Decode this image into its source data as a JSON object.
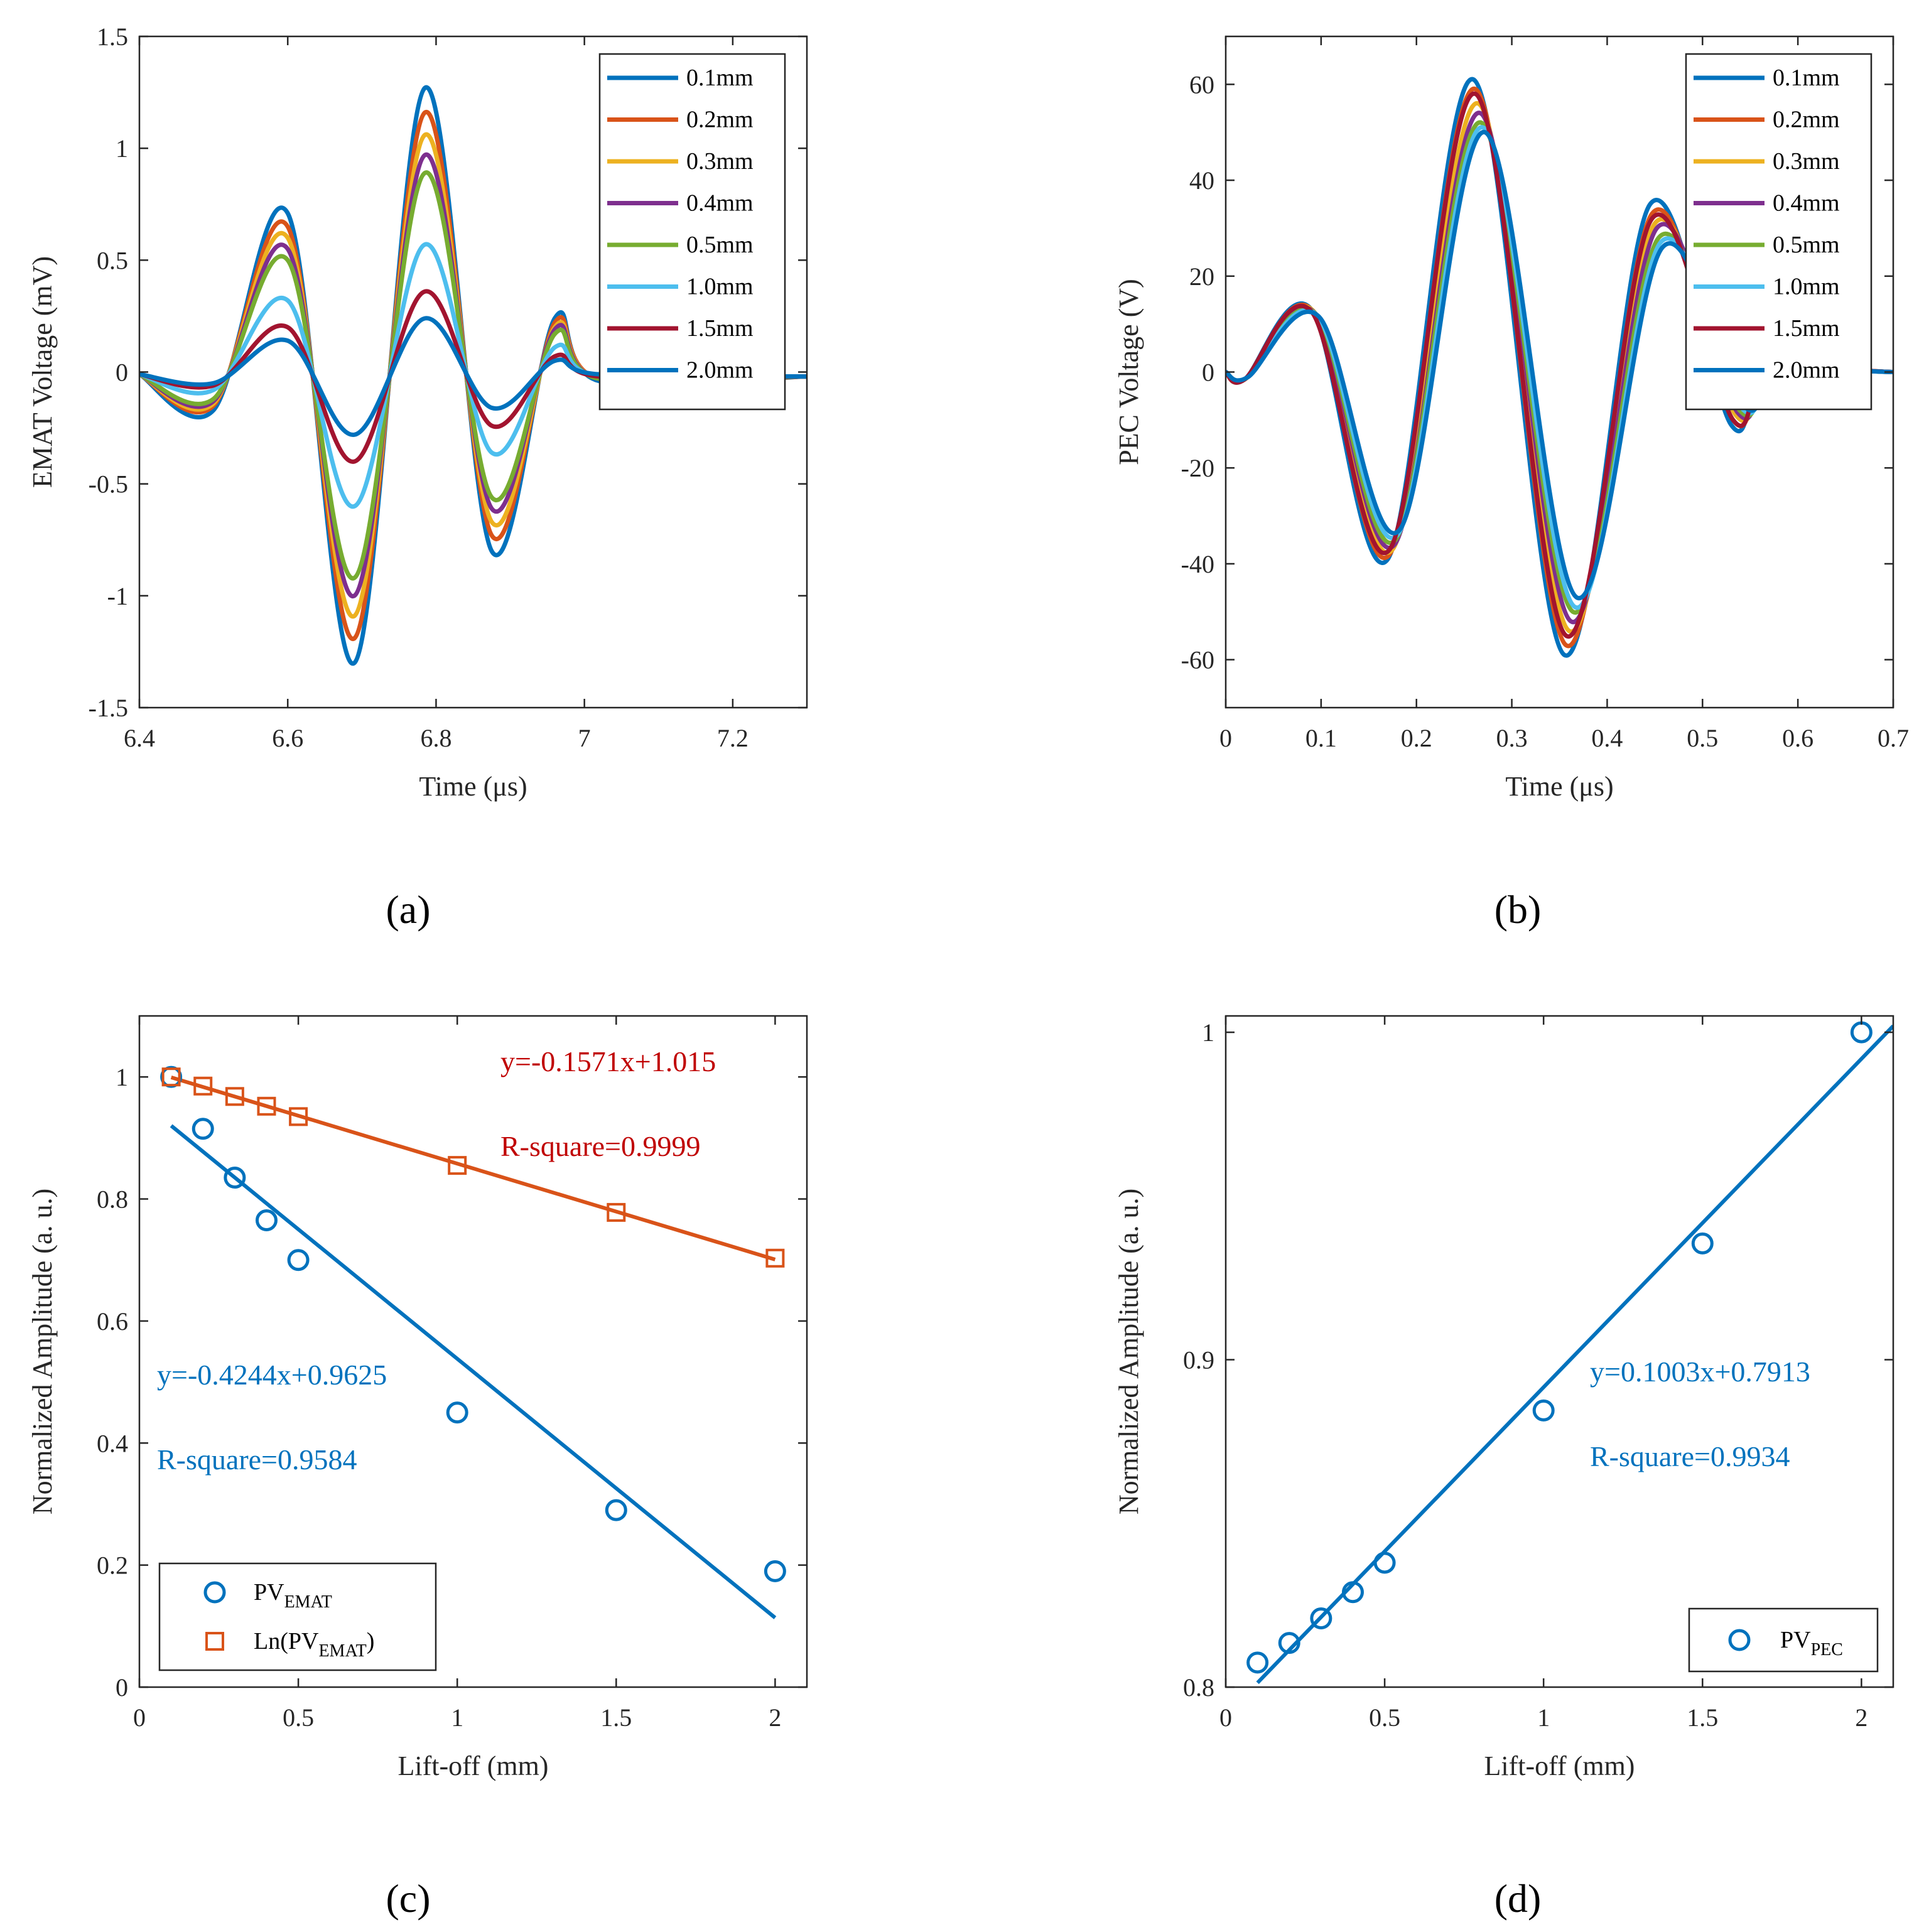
{
  "captions": [
    "(a)",
    "(b)",
    "(c)",
    "(d)"
  ],
  "chart_data": [
    {
      "type": "line",
      "panel": "(a)",
      "xlabel": "Time (μs)",
      "ylabel": "EMAT Voltage (mV)",
      "xlim": [
        6.4,
        7.3
      ],
      "ylim": [
        -1.5,
        1.5
      ],
      "xticks": [
        6.4,
        6.6,
        6.8,
        7,
        7.2
      ],
      "xtick_labels": [
        "6.4",
        "6.6",
        "6.8",
        "7",
        "7.2"
      ],
      "yticks": [
        -1.5,
        -1,
        -0.5,
        0,
        0.5,
        1,
        1.5
      ],
      "ytick_labels": [
        "-1.5",
        "-1",
        "-0.5",
        "0",
        "0.5",
        "1",
        "1.5"
      ],
      "legend_position": "top-right",
      "series": [
        {
          "name": "0.1mm",
          "color": "#0072BD",
          "values": [
            {
              "x": 6.4,
              "y": -0.01
            },
            {
              "x": 6.5,
              "y": -0.17
            },
            {
              "x": 6.6,
              "y": 0.71
            },
            {
              "x": 6.69,
              "y": -1.3
            },
            {
              "x": 6.785,
              "y": 1.27
            },
            {
              "x": 6.875,
              "y": -0.8
            },
            {
              "x": 6.96,
              "y": 0.24
            },
            {
              "x": 7.02,
              "y": -0.04
            },
            {
              "x": 7.3,
              "y": -0.02
            }
          ]
        },
        {
          "name": "0.2mm",
          "color": "#D95319",
          "values": [
            {
              "x": 6.4,
              "y": -0.01
            },
            {
              "x": 6.5,
              "y": -0.15
            },
            {
              "x": 6.6,
              "y": 0.65
            },
            {
              "x": 6.69,
              "y": -1.19
            },
            {
              "x": 6.785,
              "y": 1.16
            },
            {
              "x": 6.875,
              "y": -0.73
            },
            {
              "x": 6.96,
              "y": 0.22
            },
            {
              "x": 7.02,
              "y": -0.03
            },
            {
              "x": 7.3,
              "y": -0.02
            }
          ]
        },
        {
          "name": "0.3mm",
          "color": "#EDB120",
          "values": [
            {
              "x": 6.4,
              "y": -0.01
            },
            {
              "x": 6.5,
              "y": -0.14
            },
            {
              "x": 6.6,
              "y": 0.6
            },
            {
              "x": 6.69,
              "y": -1.09
            },
            {
              "x": 6.785,
              "y": 1.06
            },
            {
              "x": 6.875,
              "y": -0.67
            },
            {
              "x": 6.96,
              "y": 0.2
            },
            {
              "x": 7.02,
              "y": -0.03
            },
            {
              "x": 7.3,
              "y": -0.02
            }
          ]
        },
        {
          "name": "0.4mm",
          "color": "#7E2F8E",
          "values": [
            {
              "x": 6.4,
              "y": -0.01
            },
            {
              "x": 6.5,
              "y": -0.13
            },
            {
              "x": 6.6,
              "y": 0.55
            },
            {
              "x": 6.69,
              "y": -1.0
            },
            {
              "x": 6.785,
              "y": 0.97
            },
            {
              "x": 6.875,
              "y": -0.61
            },
            {
              "x": 6.96,
              "y": 0.19
            },
            {
              "x": 7.02,
              "y": -0.03
            },
            {
              "x": 7.3,
              "y": -0.02
            }
          ]
        },
        {
          "name": "0.5mm",
          "color": "#77AC30",
          "values": [
            {
              "x": 6.4,
              "y": -0.01
            },
            {
              "x": 6.5,
              "y": -0.12
            },
            {
              "x": 6.6,
              "y": 0.5
            },
            {
              "x": 6.69,
              "y": -0.92
            },
            {
              "x": 6.785,
              "y": 0.89
            },
            {
              "x": 6.875,
              "y": -0.56
            },
            {
              "x": 6.96,
              "y": 0.17
            },
            {
              "x": 7.02,
              "y": -0.03
            },
            {
              "x": 7.3,
              "y": -0.02
            }
          ]
        },
        {
          "name": "1.0mm",
          "color": "#4DBEEE",
          "values": [
            {
              "x": 6.4,
              "y": -0.01
            },
            {
              "x": 6.5,
              "y": -0.08
            },
            {
              "x": 6.6,
              "y": 0.32
            },
            {
              "x": 6.69,
              "y": -0.6
            },
            {
              "x": 6.785,
              "y": 0.57
            },
            {
              "x": 6.875,
              "y": -0.36
            },
            {
              "x": 6.96,
              "y": 0.11
            },
            {
              "x": 7.02,
              "y": -0.02
            },
            {
              "x": 7.3,
              "y": -0.02
            }
          ]
        },
        {
          "name": "1.5mm",
          "color": "#A2142F",
          "values": [
            {
              "x": 6.4,
              "y": -0.01
            },
            {
              "x": 6.5,
              "y": -0.06
            },
            {
              "x": 6.6,
              "y": 0.2
            },
            {
              "x": 6.69,
              "y": -0.4
            },
            {
              "x": 6.785,
              "y": 0.36
            },
            {
              "x": 6.875,
              "y": -0.24
            },
            {
              "x": 6.96,
              "y": 0.07
            },
            {
              "x": 7.02,
              "y": -0.02
            },
            {
              "x": 7.3,
              "y": -0.02
            }
          ]
        },
        {
          "name": "2.0mm",
          "color": "#0072BD",
          "values": [
            {
              "x": 6.4,
              "y": -0.01
            },
            {
              "x": 6.5,
              "y": -0.05
            },
            {
              "x": 6.6,
              "y": 0.14
            },
            {
              "x": 6.69,
              "y": -0.28
            },
            {
              "x": 6.785,
              "y": 0.24
            },
            {
              "x": 6.875,
              "y": -0.16
            },
            {
              "x": 6.96,
              "y": 0.05
            },
            {
              "x": 7.02,
              "y": -0.01
            },
            {
              "x": 7.3,
              "y": -0.02
            }
          ]
        }
      ]
    },
    {
      "type": "line",
      "panel": "(b)",
      "xlabel": "Time (μs)",
      "ylabel": "PEC Voltage (V)",
      "xlim": [
        0,
        0.7
      ],
      "ylim": [
        -70,
        70
      ],
      "xticks": [
        0,
        0.1,
        0.2,
        0.3,
        0.4,
        0.5,
        0.6,
        0.7
      ],
      "xtick_labels": [
        "0",
        "0.1",
        "0.2",
        "0.3",
        "0.4",
        "0.5",
        "0.6",
        "0.7"
      ],
      "yticks": [
        -60,
        -40,
        -20,
        0,
        20,
        40,
        60
      ],
      "ytick_labels": [
        "-60",
        "-40",
        "-20",
        "0",
        "20",
        "40",
        "60"
      ],
      "legend_position": "top-right",
      "series": [
        {
          "name": "0.1mm",
          "color": "#0072BD",
          "values": [
            {
              "x": 0,
              "y": 0
            },
            {
              "x": 0.02,
              "y": -1.5
            },
            {
              "x": 0.09,
              "y": 13
            },
            {
              "x": 0.17,
              "y": -39
            },
            {
              "x": 0.26,
              "y": 61
            },
            {
              "x": 0.355,
              "y": -59
            },
            {
              "x": 0.445,
              "y": 35
            },
            {
              "x": 0.53,
              "y": -11
            },
            {
              "x": 0.57,
              "y": 0
            },
            {
              "x": 0.7,
              "y": 0
            }
          ]
        },
        {
          "name": "0.2mm",
          "color": "#D95319",
          "values": [
            {
              "x": 0,
              "y": 0
            },
            {
              "x": 0.02,
              "y": -1.5
            },
            {
              "x": 0.091,
              "y": 12.8
            },
            {
              "x": 0.172,
              "y": -38
            },
            {
              "x": 0.262,
              "y": 59
            },
            {
              "x": 0.357,
              "y": -57
            },
            {
              "x": 0.447,
              "y": 33
            },
            {
              "x": 0.532,
              "y": -10
            },
            {
              "x": 0.572,
              "y": 0
            },
            {
              "x": 0.7,
              "y": 0
            }
          ]
        },
        {
          "name": "0.3mm",
          "color": "#EDB120",
          "values": [
            {
              "x": 0,
              "y": 0
            },
            {
              "x": 0.021,
              "y": -1.4
            },
            {
              "x": 0.093,
              "y": 12.5
            },
            {
              "x": 0.175,
              "y": -37
            },
            {
              "x": 0.265,
              "y": 56
            },
            {
              "x": 0.36,
              "y": -54
            },
            {
              "x": 0.45,
              "y": 31
            },
            {
              "x": 0.535,
              "y": -9
            },
            {
              "x": 0.575,
              "y": 0
            },
            {
              "x": 0.7,
              "y": 0
            }
          ]
        },
        {
          "name": "0.4mm",
          "color": "#7E2F8E",
          "values": [
            {
              "x": 0,
              "y": 0
            },
            {
              "x": 0.021,
              "y": -1.3
            },
            {
              "x": 0.094,
              "y": 12.2
            },
            {
              "x": 0.177,
              "y": -36
            },
            {
              "x": 0.267,
              "y": 54
            },
            {
              "x": 0.362,
              "y": -52
            },
            {
              "x": 0.452,
              "y": 30
            },
            {
              "x": 0.537,
              "y": -8.5
            },
            {
              "x": 0.577,
              "y": 0
            },
            {
              "x": 0.7,
              "y": 0
            }
          ]
        },
        {
          "name": "0.5mm",
          "color": "#77AC30",
          "values": [
            {
              "x": 0,
              "y": 0
            },
            {
              "x": 0.022,
              "y": -1.2
            },
            {
              "x": 0.095,
              "y": 12
            },
            {
              "x": 0.178,
              "y": -35
            },
            {
              "x": 0.268,
              "y": 52
            },
            {
              "x": 0.364,
              "y": -50
            },
            {
              "x": 0.454,
              "y": 28
            },
            {
              "x": 0.539,
              "y": -8
            },
            {
              "x": 0.579,
              "y": 0
            },
            {
              "x": 0.7,
              "y": 0
            }
          ]
        },
        {
          "name": "1.0mm",
          "color": "#4DBEEE",
          "values": [
            {
              "x": 0,
              "y": 0
            },
            {
              "x": 0.022,
              "y": -1.2
            },
            {
              "x": 0.096,
              "y": 11.8
            },
            {
              "x": 0.18,
              "y": -34
            },
            {
              "x": 0.27,
              "y": 51
            },
            {
              "x": 0.366,
              "y": -49
            },
            {
              "x": 0.456,
              "y": 27
            },
            {
              "x": 0.541,
              "y": -7.5
            },
            {
              "x": 0.58,
              "y": 0
            },
            {
              "x": 0.7,
              "y": 0
            }
          ]
        },
        {
          "name": "1.5mm",
          "color": "#A2142F",
          "values": [
            {
              "x": 0,
              "y": 0
            },
            {
              "x": 0.02,
              "y": -1.5
            },
            {
              "x": 0.09,
              "y": 12.6
            },
            {
              "x": 0.172,
              "y": -37
            },
            {
              "x": 0.262,
              "y": 58
            },
            {
              "x": 0.357,
              "y": -55
            },
            {
              "x": 0.447,
              "y": 32
            },
            {
              "x": 0.532,
              "y": -10
            },
            {
              "x": 0.572,
              "y": 0
            },
            {
              "x": 0.7,
              "y": 0
            }
          ]
        },
        {
          "name": "2.0mm",
          "color": "#0072BD",
          "values": [
            {
              "x": 0,
              "y": 0
            },
            {
              "x": 0.023,
              "y": -1.1
            },
            {
              "x": 0.098,
              "y": 11.5
            },
            {
              "x": 0.182,
              "y": -33
            },
            {
              "x": 0.272,
              "y": 50
            },
            {
              "x": 0.368,
              "y": -47
            },
            {
              "x": 0.458,
              "y": 26
            },
            {
              "x": 0.543,
              "y": -7
            },
            {
              "x": 0.582,
              "y": 0
            },
            {
              "x": 0.7,
              "y": 0
            }
          ]
        }
      ]
    },
    {
      "type": "scatter",
      "panel": "(c)",
      "xlabel": "Lift-off (mm)",
      "ylabel": "Normalized Amplitude (a. u.)",
      "xlim": [
        0,
        2.1
      ],
      "ylim": [
        0,
        1.1
      ],
      "xticks": [
        0,
        0.5,
        1,
        1.5,
        2
      ],
      "xtick_labels": [
        "0",
        "0.5",
        "1",
        "1.5",
        "2"
      ],
      "yticks": [
        0,
        0.2,
        0.4,
        0.6,
        0.8,
        1
      ],
      "ytick_labels": [
        "0",
        "0.2",
        "0.4",
        "0.6",
        "0.8",
        "1"
      ],
      "legend_position": "bottom-left",
      "series": [
        {
          "name": "PV",
          "name_sub": "EMAT",
          "marker": "circle",
          "color": "#0072BD",
          "x": [
            0.1,
            0.2,
            0.3,
            0.4,
            0.5,
            1.0,
            1.5,
            2.0
          ],
          "y": [
            1.0,
            0.915,
            0.835,
            0.765,
            0.7,
            0.45,
            0.29,
            0.19
          ]
        },
        {
          "name": "Ln(PV",
          "name_sub": "EMAT",
          "name_tail": ")",
          "marker": "square",
          "color": "#D95319",
          "x": [
            0.1,
            0.2,
            0.3,
            0.4,
            0.5,
            1.0,
            1.5,
            2.0
          ],
          "y": [
            1.0,
            0.985,
            0.968,
            0.952,
            0.935,
            0.855,
            0.778,
            0.703
          ]
        }
      ],
      "fits": [
        {
          "color": "#0072BD",
          "slope": -0.4244,
          "intercept": 0.9625,
          "x_range": [
            0.1,
            2.0
          ],
          "equation": "y=-0.4244x+0.9625",
          "r_square": "R-square=0.9584"
        },
        {
          "color": "#D95319",
          "slope": -0.1571,
          "intercept": 1.015,
          "x_range": [
            0.1,
            2.0
          ],
          "equation": "y=-0.1571x+1.015",
          "r_square": "R-square=0.9999",
          "text_color": "#C00000"
        }
      ]
    },
    {
      "type": "scatter",
      "panel": "(d)",
      "xlabel": "Lift-off (mm)",
      "ylabel": "Normalized Amplitude (a. u.)",
      "xlim": [
        0,
        2.1
      ],
      "ylim": [
        0.8,
        1.005
      ],
      "xticks": [
        0,
        0.5,
        1,
        1.5,
        2
      ],
      "xtick_labels": [
        "0",
        "0.5",
        "1",
        "1.5",
        "2"
      ],
      "yticks": [
        0.8,
        0.9,
        1
      ],
      "ytick_labels": [
        "0.8",
        "0.9",
        "1"
      ],
      "legend_position": "bottom-right",
      "series": [
        {
          "name": "PV",
          "name_sub": "PEC",
          "marker": "circle",
          "color": "#0072BD",
          "x": [
            0.1,
            0.2,
            0.3,
            0.4,
            0.5,
            1.0,
            1.5,
            2.0
          ],
          "y": [
            0.8075,
            0.8135,
            0.821,
            0.829,
            0.838,
            0.8845,
            0.9355,
            1.0
          ]
        }
      ],
      "fits": [
        {
          "color": "#0072BD",
          "slope": 0.1003,
          "intercept": 0.7913,
          "x_range": [
            0.1,
            2.1
          ],
          "equation": "y=0.1003x+0.7913",
          "r_square": "R-square=0.9934"
        }
      ]
    }
  ]
}
